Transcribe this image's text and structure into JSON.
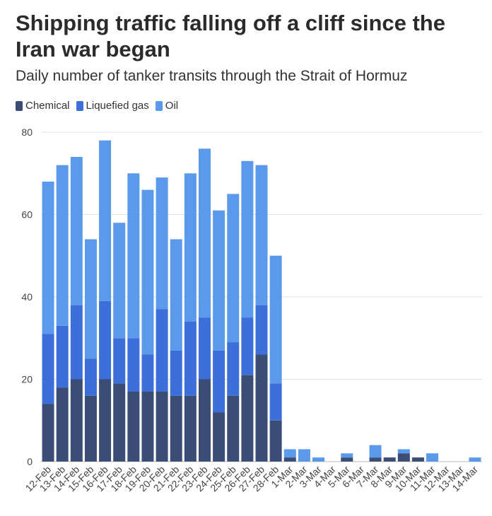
{
  "header": {
    "title": "Shipping traffic falling off a cliff since the Iran war began",
    "subtitle": "Daily number of tanker transits through the Strait of Hormuz"
  },
  "colors": {
    "chemical": "#3b4d75",
    "liquefied_gas": "#3d6fdb",
    "oil": "#5b9aea",
    "grid": "#e3e3e3",
    "text": "#333333"
  },
  "chart_data": {
    "type": "bar",
    "stacked": true,
    "title": "Shipping traffic falling off a cliff since the Iran war began",
    "subtitle": "Daily number of tanker transits through the Strait of Hormuz",
    "xlabel": "",
    "ylabel": "",
    "ylim": [
      0,
      80
    ],
    "yticks": [
      0,
      20,
      40,
      60,
      80
    ],
    "grid": true,
    "legend_position": "top-left",
    "categories": [
      "12-Feb",
      "13-Feb",
      "14-Feb",
      "15-Feb",
      "16-Feb",
      "17-Feb",
      "18-Feb",
      "19-Feb",
      "20-Feb",
      "21-Feb",
      "22-Feb",
      "23-Feb",
      "24-Feb",
      "25-Feb",
      "26-Feb",
      "27-Feb",
      "28-Feb",
      "1-Mar",
      "2-Mar",
      "3-Mar",
      "4-Mar",
      "5-Mar",
      "6-Mar",
      "7-Mar",
      "8-Mar",
      "9-Mar",
      "10-Mar",
      "11-Mar",
      "12-Mar",
      "13-Mar",
      "14-Mar"
    ],
    "series": [
      {
        "name": "Chemical",
        "color": "#3b4d75",
        "values": [
          14,
          18,
          20,
          16,
          20,
          19,
          17,
          17,
          17,
          16,
          16,
          20,
          12,
          16,
          21,
          26,
          10,
          1,
          0,
          0,
          0,
          1,
          0,
          1,
          1,
          2,
          1,
          0,
          0,
          0,
          0
        ]
      },
      {
        "name": "Liquefied gas",
        "color": "#3d6fdb",
        "values": [
          17,
          15,
          18,
          9,
          19,
          11,
          13,
          9,
          20,
          11,
          18,
          15,
          15,
          13,
          14,
          12,
          9,
          0,
          0,
          0,
          0,
          0,
          0,
          0,
          0,
          0,
          0,
          0,
          0,
          0,
          0
        ]
      },
      {
        "name": "Oil",
        "color": "#5b9aea",
        "values": [
          37,
          39,
          36,
          29,
          39,
          28,
          40,
          40,
          32,
          27,
          36,
          41,
          34,
          36,
          38,
          34,
          31,
          2,
          3,
          1,
          0,
          1,
          0,
          3,
          0,
          1,
          0,
          2,
          0,
          0,
          1
        ]
      }
    ]
  }
}
